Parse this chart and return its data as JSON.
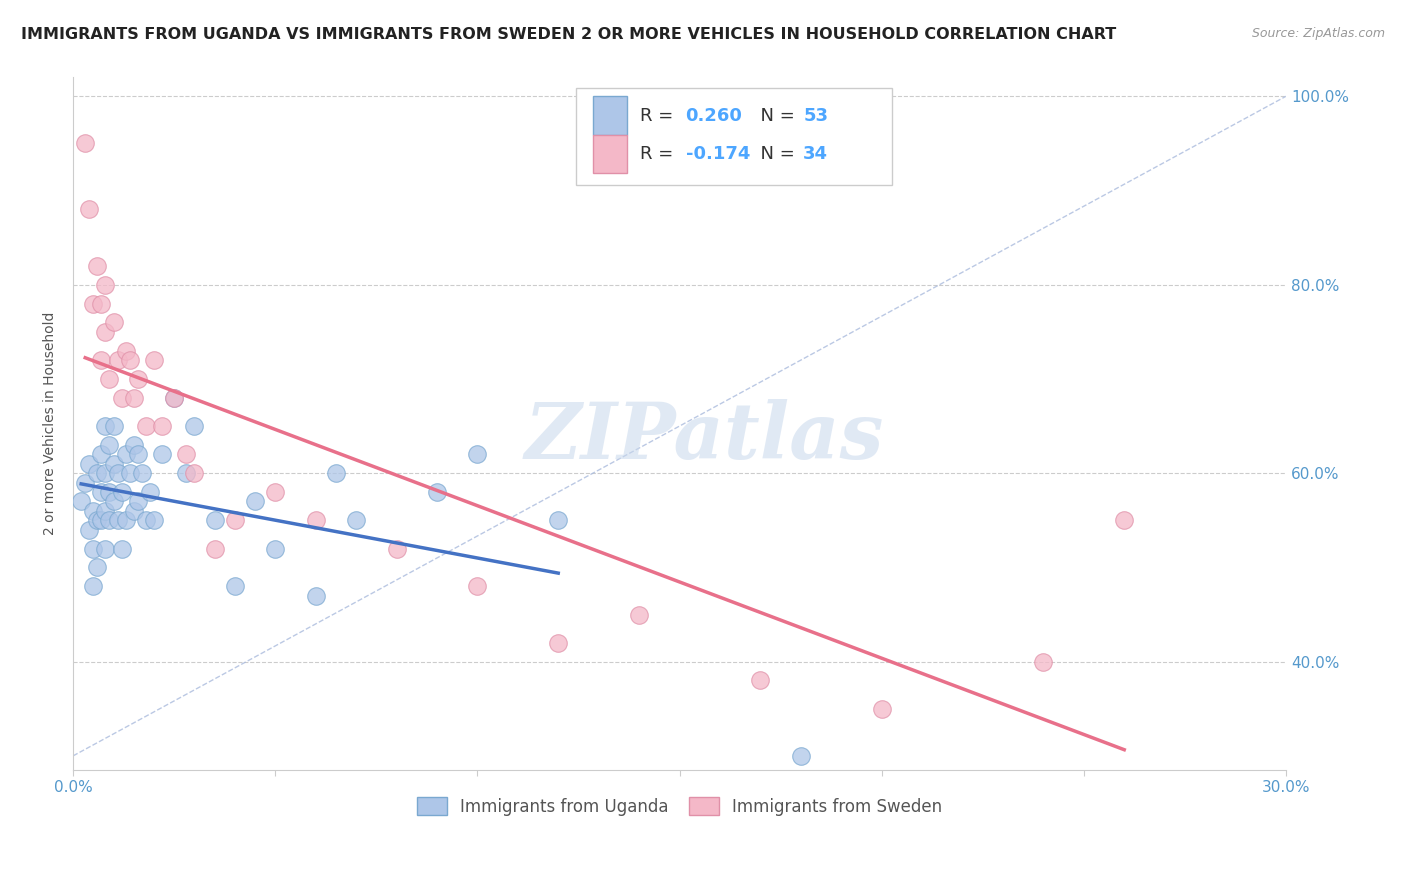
{
  "title": "IMMIGRANTS FROM UGANDA VS IMMIGRANTS FROM SWEDEN 2 OR MORE VEHICLES IN HOUSEHOLD CORRELATION CHART",
  "source": "Source: ZipAtlas.com",
  "ylabel": "2 or more Vehicles in Household",
  "xlim": [
    0.0,
    0.3
  ],
  "ylim": [
    0.285,
    1.02
  ],
  "xticks": [
    0.0,
    0.05,
    0.1,
    0.15,
    0.2,
    0.25,
    0.3
  ],
  "xticklabels_left": [
    "0.0%",
    "",
    "",
    "",
    "",
    "",
    ""
  ],
  "xticklabels_right": [
    "",
    "",
    "",
    "",
    "",
    "",
    "30.0%"
  ],
  "ytick_vals": [
    0.4,
    0.6,
    0.8,
    1.0
  ],
  "yticklabels": [
    "40.0%",
    "60.0%",
    "80.0%",
    "100.0%"
  ],
  "uganda_color": "#aec6e8",
  "sweden_color": "#f4b8c8",
  "uganda_edge": "#7aa8d0",
  "sweden_edge": "#e090a8",
  "uganda_R": 0.26,
  "uganda_N": 53,
  "sweden_R": -0.174,
  "sweden_N": 34,
  "uganda_line_color": "#4472c4",
  "sweden_line_color": "#e8708a",
  "ref_line_color": "#aabbdd",
  "watermark": "ZIPatlas",
  "legend_color": "#4da6ff",
  "uganda_x": [
    0.002,
    0.003,
    0.004,
    0.004,
    0.005,
    0.005,
    0.005,
    0.006,
    0.006,
    0.006,
    0.007,
    0.007,
    0.007,
    0.008,
    0.008,
    0.008,
    0.008,
    0.009,
    0.009,
    0.009,
    0.01,
    0.01,
    0.01,
    0.011,
    0.011,
    0.012,
    0.012,
    0.013,
    0.013,
    0.014,
    0.015,
    0.015,
    0.016,
    0.016,
    0.017,
    0.018,
    0.019,
    0.02,
    0.022,
    0.025,
    0.028,
    0.03,
    0.035,
    0.04,
    0.045,
    0.05,
    0.06,
    0.065,
    0.07,
    0.09,
    0.1,
    0.12,
    0.18
  ],
  "uganda_y": [
    0.57,
    0.59,
    0.54,
    0.61,
    0.48,
    0.52,
    0.56,
    0.5,
    0.55,
    0.6,
    0.55,
    0.58,
    0.62,
    0.52,
    0.56,
    0.6,
    0.65,
    0.55,
    0.58,
    0.63,
    0.57,
    0.61,
    0.65,
    0.55,
    0.6,
    0.52,
    0.58,
    0.55,
    0.62,
    0.6,
    0.56,
    0.63,
    0.57,
    0.62,
    0.6,
    0.55,
    0.58,
    0.55,
    0.62,
    0.68,
    0.6,
    0.65,
    0.55,
    0.48,
    0.57,
    0.52,
    0.47,
    0.6,
    0.55,
    0.58,
    0.62,
    0.55,
    0.3
  ],
  "sweden_x": [
    0.003,
    0.004,
    0.005,
    0.006,
    0.007,
    0.007,
    0.008,
    0.008,
    0.009,
    0.01,
    0.011,
    0.012,
    0.013,
    0.014,
    0.015,
    0.016,
    0.018,
    0.02,
    0.022,
    0.025,
    0.028,
    0.03,
    0.035,
    0.04,
    0.05,
    0.06,
    0.08,
    0.1,
    0.12,
    0.14,
    0.17,
    0.2,
    0.24,
    0.26
  ],
  "sweden_y": [
    0.95,
    0.88,
    0.78,
    0.82,
    0.72,
    0.78,
    0.75,
    0.8,
    0.7,
    0.76,
    0.72,
    0.68,
    0.73,
    0.72,
    0.68,
    0.7,
    0.65,
    0.72,
    0.65,
    0.68,
    0.62,
    0.6,
    0.52,
    0.55,
    0.58,
    0.55,
    0.52,
    0.48,
    0.42,
    0.45,
    0.38,
    0.35,
    0.4,
    0.55
  ],
  "ref_line_x": [
    0.0,
    0.3
  ],
  "ref_line_y": [
    0.3,
    1.0
  ],
  "uganda_trend_x": [
    0.002,
    0.12
  ],
  "sweden_trend_x": [
    0.003,
    0.26
  ]
}
